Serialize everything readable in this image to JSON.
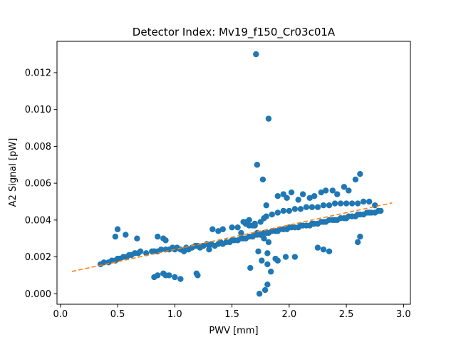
{
  "chart_data": {
    "type": "scatter",
    "title": "Detector Index: Mv19_f150_Cr03c01A",
    "xlabel": "PWV [mm]",
    "ylabel": "A2 Signal [pW]",
    "xlim": [
      -0.03,
      3.06
    ],
    "ylim": [
      -0.00057,
      0.0137
    ],
    "xticks": [
      0.0,
      0.5,
      1.0,
      1.5,
      2.0,
      2.5,
      3.0
    ],
    "xtick_labels": [
      "0.0",
      "0.5",
      "1.0",
      "1.5",
      "2.0",
      "2.5",
      "3.0"
    ],
    "yticks": [
      0.0,
      0.002,
      0.004,
      0.006,
      0.008,
      0.01,
      0.012
    ],
    "ytick_labels": [
      "0.000",
      "0.002",
      "0.004",
      "0.006",
      "0.008",
      "0.010",
      "0.012"
    ],
    "colors": {
      "points": "#1f77b4",
      "fit": "#ff7f0e",
      "axes": "#000000"
    },
    "series": [
      {
        "name": "data",
        "x": [
          0.35,
          0.38,
          0.42,
          0.45,
          0.48,
          0.5,
          0.52,
          0.55,
          0.58,
          0.6,
          0.62,
          0.65,
          0.68,
          0.7,
          0.75,
          0.8,
          0.85,
          0.88,
          0.92,
          0.95,
          0.98,
          1.0,
          1.02,
          1.05,
          1.08,
          1.1,
          1.12,
          1.15,
          1.18,
          1.2,
          1.22,
          1.25,
          1.28,
          1.3,
          1.32,
          1.35,
          1.38,
          1.4,
          1.42,
          1.45,
          1.48,
          1.5,
          1.52,
          1.55,
          1.58,
          1.6,
          1.62,
          1.65,
          1.68,
          1.7,
          1.72,
          1.75,
          1.78,
          1.8,
          1.82,
          1.85,
          1.88,
          1.9,
          1.92,
          1.95,
          1.98,
          2.0,
          2.02,
          2.05,
          2.08,
          2.1,
          2.12,
          2.15,
          2.18,
          2.2,
          2.22,
          2.25,
          2.28,
          2.3,
          2.32,
          2.35,
          2.38,
          2.4,
          2.42,
          2.45,
          2.48,
          2.5,
          2.52,
          2.55,
          2.58,
          2.6,
          2.62,
          2.65,
          2.68,
          2.7,
          2.72,
          2.75,
          2.78,
          2.8,
          0.48,
          0.5,
          0.57,
          0.67,
          0.82,
          0.85,
          0.9,
          0.92,
          1.38,
          1.42,
          1.5,
          1.55,
          1.65,
          1.7,
          1.75,
          1.78,
          1.8,
          1.85,
          1.9,
          1.95,
          2.0,
          2.05,
          2.1,
          2.15,
          2.2,
          2.25,
          2.3,
          2.35,
          2.4,
          2.45,
          2.5,
          2.55,
          2.6,
          2.65,
          2.7,
          2.75,
          1.9,
          1.95,
          1.98,
          2.02,
          2.08,
          2.12,
          2.18,
          2.22,
          2.28,
          2.32,
          2.38,
          2.42,
          2.48,
          2.52,
          2.58,
          2.62,
          1.62,
          1.68,
          1.72,
          1.78,
          1.82,
          1.72,
          1.82,
          1.71,
          1.77,
          1.8,
          1.81,
          1.66,
          1.73,
          1.76,
          1.81,
          1.9,
          1.97,
          2.05,
          1.81,
          2.25,
          2.3,
          2.35,
          2.6,
          2.62,
          0.82,
          0.85,
          0.9,
          0.92,
          0.95,
          1.0,
          1.05,
          1.2,
          1.19,
          0.82,
          1.3,
          1.33,
          1.6,
          1.65,
          1.7,
          1.75,
          1.63,
          1.58,
          1.74,
          1.79,
          1.84,
          1.88
        ],
        "y": [
          0.0016,
          0.0017,
          0.0017,
          0.0018,
          0.0018,
          0.0019,
          0.0019,
          0.002,
          0.002,
          0.0021,
          0.0021,
          0.0022,
          0.0022,
          0.0023,
          0.0022,
          0.0023,
          0.0023,
          0.0024,
          0.0024,
          0.0024,
          0.0025,
          0.0024,
          0.0025,
          0.0024,
          0.0023,
          0.0025,
          0.0024,
          0.0025,
          0.0026,
          0.0026,
          0.0025,
          0.0026,
          0.0027,
          0.0026,
          0.0027,
          0.0026,
          0.0027,
          0.0028,
          0.0027,
          0.0028,
          0.0028,
          0.0029,
          0.0029,
          0.0029,
          0.003,
          0.003,
          0.003,
          0.0031,
          0.0031,
          0.0032,
          0.0032,
          0.0032,
          0.0033,
          0.0033,
          0.0033,
          0.0034,
          0.0034,
          0.0034,
          0.0035,
          0.0035,
          0.0035,
          0.0036,
          0.0036,
          0.0036,
          0.0036,
          0.0037,
          0.0037,
          0.0037,
          0.0037,
          0.0038,
          0.0038,
          0.0038,
          0.0039,
          0.0039,
          0.0039,
          0.004,
          0.004,
          0.004,
          0.004,
          0.0041,
          0.0041,
          0.0041,
          0.0042,
          0.0042,
          0.0042,
          0.0043,
          0.0043,
          0.0043,
          0.0044,
          0.0044,
          0.0044,
          0.0044,
          0.0045,
          0.0045,
          0.0031,
          0.0035,
          0.0032,
          0.003,
          0.0023,
          0.0031,
          0.003,
          0.0029,
          0.0034,
          0.0035,
          0.0036,
          0.0036,
          0.0037,
          0.0038,
          0.0039,
          0.0041,
          0.0042,
          0.0043,
          0.0044,
          0.0045,
          0.0045,
          0.0046,
          0.0046,
          0.0047,
          0.0047,
          0.0047,
          0.0048,
          0.0048,
          0.0049,
          0.0049,
          0.0049,
          0.0049,
          0.0049,
          0.005,
          0.005,
          0.0048,
          0.0053,
          0.0054,
          0.0052,
          0.0055,
          0.0051,
          0.0054,
          0.0052,
          0.0053,
          0.0055,
          0.0056,
          0.0056,
          0.0054,
          0.0058,
          0.0056,
          0.0062,
          0.0065,
          0.0038,
          0.0037,
          0.0033,
          0.003,
          0.0028,
          0.007,
          0.0095,
          0.013,
          0.0062,
          0.0048,
          0.0016,
          0.0014,
          0.0023,
          0.0018,
          0.0022,
          0.0018,
          0.002,
          0.002,
          0.0005,
          0.0025,
          0.0024,
          0.0023,
          0.0028,
          0.0031,
          0.0009,
          0.001,
          0.0011,
          0.001,
          0.001,
          0.0009,
          0.0008,
          0.001,
          0.0011,
          0.0023,
          0.0024,
          0.0035,
          0.0039,
          0.004,
          0.0037,
          0.0032,
          0.0039,
          0.0033,
          0.0,
          0.0002,
          0.0012,
          0.0019
        ]
      },
      {
        "name": "fit",
        "style": "dashed-line",
        "x": [
          0.1,
          2.9
        ],
        "y": [
          0.00121,
          0.00493
        ]
      }
    ]
  }
}
